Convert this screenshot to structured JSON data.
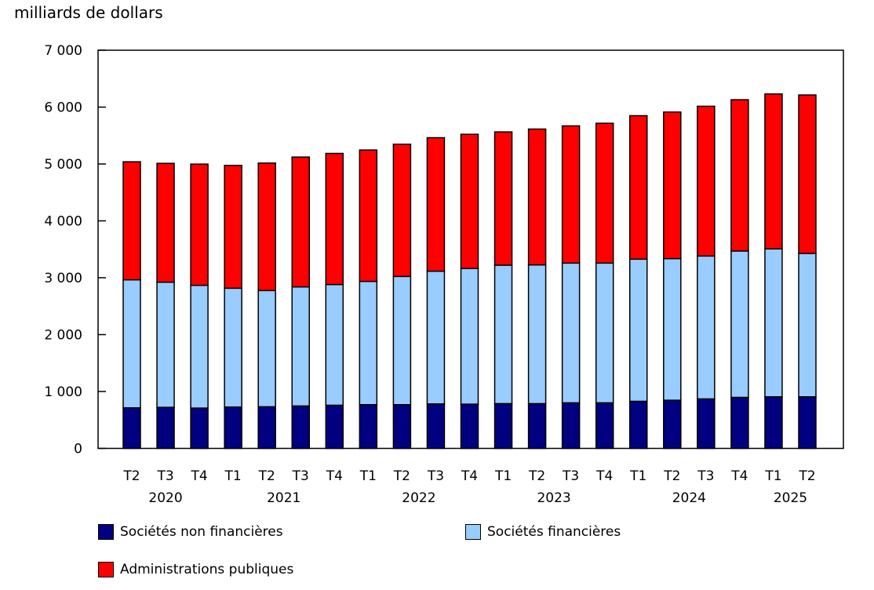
{
  "chart_data": {
    "type": "bar",
    "stacked": true,
    "title": "",
    "ylabel": "milliards de dollars",
    "ylim": [
      0,
      7000
    ],
    "yticks": [
      "0",
      "1 000",
      "2 000",
      "3 000",
      "4 000",
      "5 000",
      "6 000",
      "7 000"
    ],
    "categories": [
      "T2",
      "T3",
      "T4",
      "T1",
      "T2",
      "T3",
      "T4",
      "T1",
      "T2",
      "T3",
      "T4",
      "T1",
      "T2",
      "T3",
      "T4",
      "T1",
      "T2",
      "T3",
      "T4",
      "T1",
      "T2"
    ],
    "years": [
      {
        "label": "2020",
        "from": 0,
        "to": 2
      },
      {
        "label": "2021",
        "from": 3,
        "to": 6
      },
      {
        "label": "2022",
        "from": 7,
        "to": 10
      },
      {
        "label": "2023",
        "from": 11,
        "to": 14
      },
      {
        "label": "2024",
        "from": 15,
        "to": 18
      },
      {
        "label": "2025",
        "from": 19,
        "to": 20
      }
    ],
    "series": [
      {
        "name": "Sociétés non financières",
        "color": "#000080",
        "values": [
          713,
          722,
          709,
          727,
          732,
          746,
          759,
          769,
          769,
          782,
          778,
          787,
          787,
          801,
          801,
          828,
          847,
          870,
          897,
          907,
          907
        ]
      },
      {
        "name": "Sociétés financières",
        "color": "#99ccff",
        "values": [
          2251,
          2200,
          2158,
          2089,
          2043,
          2093,
          2122,
          2167,
          2254,
          2333,
          2384,
          2434,
          2439,
          2457,
          2457,
          2499,
          2489,
          2512,
          2573,
          2600,
          2521
        ]
      },
      {
        "name": "Administrations publiques",
        "color": "#ff0000",
        "values": [
          2075,
          2089,
          2131,
          2159,
          2241,
          2283,
          2305,
          2310,
          2324,
          2347,
          2360,
          2343,
          2388,
          2412,
          2458,
          2522,
          2577,
          2633,
          2660,
          2724,
          2785
        ]
      }
    ],
    "grid": false,
    "legend_position": "bottom"
  }
}
